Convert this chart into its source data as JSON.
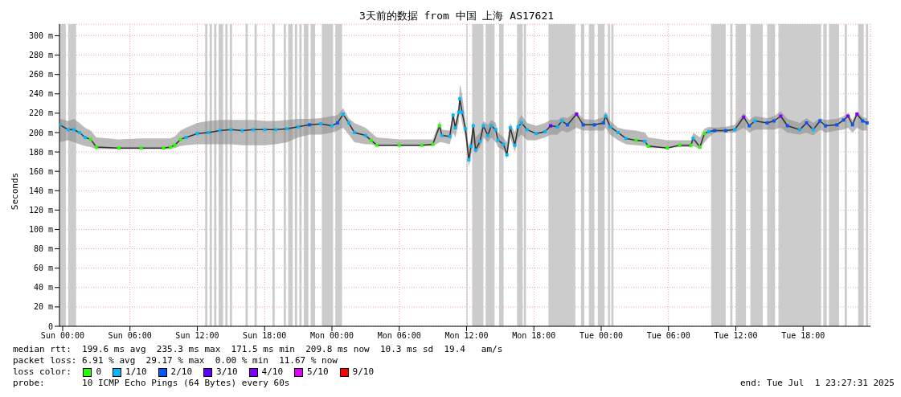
{
  "chart_data": {
    "type": "line",
    "title": "3天前的数据 from 中国 上海 AS17621",
    "ylabel": "Seconds",
    "legend_title": "loss color:",
    "legend": "bottom",
    "grid": true,
    "xlim": [
      "2025-06-28T23:43",
      "2025-07-02T00:00"
    ],
    "xticks": [
      {
        "value": "2025-06-29T00:00",
        "label": "Sun 00:00"
      },
      {
        "value": "2025-06-29T06:00",
        "label": "Sun 06:00"
      },
      {
        "value": "2025-06-29T12:00",
        "label": "Sun 12:00"
      },
      {
        "value": "2025-06-29T18:00",
        "label": "Sun 18:00"
      },
      {
        "value": "2025-06-30T00:00",
        "label": "Mon 00:00"
      },
      {
        "value": "2025-06-30T06:00",
        "label": "Mon 06:00"
      },
      {
        "value": "2025-06-30T12:00",
        "label": "Mon 12:00"
      },
      {
        "value": "2025-06-30T18:00",
        "label": "Mon 18:00"
      },
      {
        "value": "2025-07-01T00:00",
        "label": "Tue 00:00"
      },
      {
        "value": "2025-07-01T06:00",
        "label": "Tue 06:00"
      },
      {
        "value": "2025-07-01T12:00",
        "label": "Tue 12:00"
      },
      {
        "value": "2025-07-01T18:00",
        "label": "Tue 18:00"
      }
    ],
    "ylim": [
      0,
      312
    ],
    "yticks": [
      {
        "value": 0,
        "label": "0"
      },
      {
        "value": 20,
        "label": "20 m"
      },
      {
        "value": 40,
        "label": "40 m"
      },
      {
        "value": 60,
        "label": "60 m"
      },
      {
        "value": 80,
        "label": "80 m"
      },
      {
        "value": 100,
        "label": "100 m"
      },
      {
        "value": 120,
        "label": "120 m"
      },
      {
        "value": 140,
        "label": "140 m"
      },
      {
        "value": 160,
        "label": "160 m"
      },
      {
        "value": 180,
        "label": "180 m"
      },
      {
        "value": 200,
        "label": "200 m"
      },
      {
        "value": 220,
        "label": "220 m"
      },
      {
        "value": 240,
        "label": "240 m"
      },
      {
        "value": 260,
        "label": "260 m"
      },
      {
        "value": 280,
        "label": "280 m"
      },
      {
        "value": 300,
        "label": "300 m"
      }
    ],
    "x": [
      "2025-06-28T23:45",
      "2025-06-29T00:30",
      "2025-06-29T01:00",
      "2025-06-29T01:30",
      "2025-06-29T02:00",
      "2025-06-29T02:30",
      "2025-06-29T03:00",
      "2025-06-29T05:00",
      "2025-06-29T07:00",
      "2025-06-29T09:00",
      "2025-06-29T09:36",
      "2025-06-29T10:00",
      "2025-06-29T10:30",
      "2025-06-29T11:00",
      "2025-06-29T12:00",
      "2025-06-29T13:00",
      "2025-06-29T14:00",
      "2025-06-29T15:00",
      "2025-06-29T16:00",
      "2025-06-29T17:00",
      "2025-06-29T18:00",
      "2025-06-29T19:00",
      "2025-06-29T20:00",
      "2025-06-29T21:00",
      "2025-06-29T22:00",
      "2025-06-29T23:00",
      "2025-06-30T00:00",
      "2025-06-30T00:30",
      "2025-06-30T01:00",
      "2025-06-30T01:30",
      "2025-06-30T02:00",
      "2025-06-30T03:00",
      "2025-06-30T03:30",
      "2025-06-30T04:00",
      "2025-06-30T06:00",
      "2025-06-30T08:00",
      "2025-06-30T09:00",
      "2025-06-30T09:36",
      "2025-06-30T09:48",
      "2025-06-30T10:30",
      "2025-06-30T10:48",
      "2025-06-30T11:00",
      "2025-06-30T11:18",
      "2025-06-30T11:24",
      "2025-06-30T11:36",
      "2025-06-30T11:54",
      "2025-06-30T12:12",
      "2025-06-30T12:24",
      "2025-06-30T12:36",
      "2025-06-30T12:48",
      "2025-06-30T13:12",
      "2025-06-30T13:30",
      "2025-06-30T13:54",
      "2025-06-30T14:12",
      "2025-06-30T14:36",
      "2025-06-30T14:48",
      "2025-06-30T15:18",
      "2025-06-30T15:36",
      "2025-06-30T15:54",
      "2025-06-30T16:18",
      "2025-06-30T16:36",
      "2025-06-30T16:54",
      "2025-06-30T17:24",
      "2025-06-30T18:12",
      "2025-06-30T19:00",
      "2025-06-30T19:30",
      "2025-06-30T20:06",
      "2025-06-30T20:30",
      "2025-06-30T21:00",
      "2025-06-30T21:48",
      "2025-06-30T22:24",
      "2025-06-30T23:24",
      "2025-07-01T00:12",
      "2025-07-01T00:24",
      "2025-07-01T00:48",
      "2025-07-01T01:30",
      "2025-07-01T02:12",
      "2025-07-01T03:06",
      "2025-07-01T03:54",
      "2025-07-01T04:12",
      "2025-07-01T05:54",
      "2025-07-01T07:00",
      "2025-07-01T08:00",
      "2025-07-01T08:12",
      "2025-07-01T08:48",
      "2025-07-01T09:12",
      "2025-07-01T09:36",
      "2025-07-01T10:06",
      "2025-07-01T11:06",
      "2025-07-01T11:54",
      "2025-07-01T12:42",
      "2025-07-01T13:12",
      "2025-07-01T13:42",
      "2025-07-01T14:48",
      "2025-07-01T15:24",
      "2025-07-01T16:00",
      "2025-07-01T16:36",
      "2025-07-01T17:42",
      "2025-07-01T18:18",
      "2025-07-01T18:54",
      "2025-07-01T19:30",
      "2025-07-01T20:00",
      "2025-07-01T21:00",
      "2025-07-01T21:36",
      "2025-07-01T22:00",
      "2025-07-01T22:24",
      "2025-07-01T22:48",
      "2025-07-01T23:18",
      "2025-07-01T23:42"
    ],
    "series": [
      {
        "color": "#303030",
        "values": [
          208,
          203,
          203,
          200,
          195,
          193,
          185,
          184,
          184,
          184,
          185,
          187,
          193,
          195,
          199,
          200,
          202,
          203,
          202,
          203,
          203,
          203,
          204,
          206,
          208,
          209,
          207,
          210,
          219,
          210,
          200,
          197,
          192,
          187,
          187,
          187,
          188,
          207,
          197,
          196,
          218,
          205,
          221,
          235,
          221,
          204,
          172,
          186,
          207,
          182,
          191,
          207,
          197,
          207,
          203,
          192,
          188,
          177,
          205,
          187,
          206,
          210,
          203,
          199,
          201,
          207,
          206,
          212,
          208,
          219,
          208,
          208,
          210,
          217,
          206,
          200,
          194,
          192,
          191,
          186,
          184,
          187,
          187,
          194,
          185,
          199,
          201,
          202,
          202,
          203,
          216,
          207,
          212,
          210,
          212,
          217,
          207,
          203,
          210,
          203,
          212,
          207,
          208,
          213,
          217,
          208,
          219,
          212,
          210
        ],
        "lower": [
          190,
          192,
          190,
          188,
          186,
          185,
          183,
          183,
          183,
          183,
          183,
          184,
          186,
          187,
          188,
          188,
          188,
          188,
          187,
          187,
          187,
          188,
          190,
          195,
          198,
          198,
          200,
          202,
          205,
          198,
          190,
          188,
          188,
          186,
          186,
          186,
          186,
          190,
          190,
          188,
          200,
          195,
          210,
          222,
          210,
          195,
          165,
          175,
          190,
          178,
          185,
          195,
          190,
          195,
          190,
          185,
          182,
          173,
          195,
          180,
          195,
          198,
          192,
          192,
          195,
          198,
          198,
          202,
          200,
          205,
          202,
          202,
          202,
          205,
          198,
          192,
          188,
          187,
          186,
          184,
          184,
          185,
          185,
          186,
          183,
          190,
          195,
          200,
          200,
          200,
          205,
          200,
          203,
          203,
          203,
          205,
          200,
          198,
          200,
          197,
          203,
          200,
          202,
          203,
          205,
          200,
          205,
          202,
          202
        ],
        "upper": [
          214,
          212,
          214,
          210,
          205,
          202,
          195,
          193,
          194,
          194,
          194,
          196,
          202,
          205,
          210,
          212,
          213,
          213,
          213,
          213,
          212,
          212,
          213,
          214,
          214,
          215,
          217,
          218,
          225,
          215,
          210,
          205,
          200,
          195,
          193,
          193,
          193,
          212,
          203,
          202,
          222,
          210,
          228,
          250,
          240,
          212,
          185,
          195,
          212,
          195,
          200,
          212,
          208,
          213,
          210,
          200,
          195,
          190,
          210,
          200,
          212,
          218,
          210,
          207,
          210,
          213,
          213,
          216,
          215,
          222,
          214,
          213,
          216,
          222,
          212,
          205,
          203,
          202,
          200,
          195,
          192,
          192,
          192,
          200,
          195,
          204,
          206,
          205,
          206,
          208,
          220,
          213,
          217,
          215,
          217,
          222,
          214,
          210,
          215,
          210,
          215,
          213,
          214,
          217,
          220,
          213,
          222,
          216,
          215
        ]
      },
      {
        "type": "scatter",
        "name": "0",
        "color": "#26ff00",
        "marker": "square",
        "x": [
          "2025-06-29T02:30",
          "2025-06-29T03:00",
          "2025-06-29T05:00",
          "2025-06-29T07:00",
          "2025-06-29T09:00",
          "2025-06-29T09:36",
          "2025-06-29T10:00",
          "2025-06-29T10:30",
          "2025-06-30T03:30",
          "2025-06-30T04:00",
          "2025-06-30T06:00",
          "2025-06-30T08:00",
          "2025-06-30T09:00",
          "2025-06-30T09:36",
          "2025-07-01T03:06",
          "2025-07-01T04:12",
          "2025-07-01T05:54",
          "2025-07-01T07:00",
          "2025-07-01T08:00",
          "2025-07-01T08:48",
          "2025-07-01T09:12"
        ],
        "values": [
          193,
          185,
          184,
          184,
          184,
          185,
          187,
          193,
          192,
          187,
          187,
          187,
          188,
          207,
          192,
          186,
          184,
          187,
          187,
          185,
          199
        ]
      },
      {
        "type": "scatter",
        "name": "1/10",
        "color": "#00b8ff",
        "marker": "square",
        "x": [
          "2025-06-28T23:45",
          "2025-06-29T00:30",
          "2025-06-29T01:00",
          "2025-06-29T01:30",
          "2025-06-29T02:00",
          "2025-06-29T11:00",
          "2025-06-29T12:00",
          "2025-06-29T13:00",
          "2025-06-29T14:00",
          "2025-06-29T15:00",
          "2025-06-29T16:00",
          "2025-06-29T17:00",
          "2025-06-29T18:00",
          "2025-06-29T19:00",
          "2025-06-29T20:00",
          "2025-06-29T21:00",
          "2025-06-29T23:00",
          "2025-06-30T00:00",
          "2025-06-30T01:00",
          "2025-06-30T01:30",
          "2025-06-30T02:00",
          "2025-06-30T03:00",
          "2025-06-30T09:48",
          "2025-06-30T10:30",
          "2025-06-30T10:48",
          "2025-06-30T11:00",
          "2025-06-30T11:18",
          "2025-06-30T11:24",
          "2025-06-30T11:36",
          "2025-06-30T11:54",
          "2025-06-30T12:12",
          "2025-06-30T12:24",
          "2025-06-30T12:36",
          "2025-06-30T12:48",
          "2025-06-30T13:12",
          "2025-06-30T13:30",
          "2025-06-30T13:54",
          "2025-06-30T14:12",
          "2025-06-30T14:36",
          "2025-06-30T14:48",
          "2025-06-30T15:18",
          "2025-06-30T15:36",
          "2025-06-30T15:54",
          "2025-06-30T16:18",
          "2025-06-30T16:36",
          "2025-06-30T16:54",
          "2025-06-30T17:24",
          "2025-06-30T18:12",
          "2025-06-30T19:00",
          "2025-06-30T20:06",
          "2025-06-30T20:30",
          "2025-07-01T00:24",
          "2025-07-01T00:48",
          "2025-07-01T01:30",
          "2025-07-01T02:12",
          "2025-07-01T03:54",
          "2025-07-01T08:12",
          "2025-07-01T09:36",
          "2025-07-01T11:54",
          "2025-07-01T13:42",
          "2025-07-01T17:42",
          "2025-07-01T18:54"
        ],
        "values": [
          208,
          203,
          203,
          200,
          195,
          195,
          199,
          200,
          202,
          203,
          202,
          203,
          203,
          203,
          204,
          206,
          209,
          207,
          219,
          210,
          200,
          197,
          197,
          196,
          218,
          205,
          221,
          235,
          221,
          204,
          172,
          186,
          207,
          182,
          191,
          207,
          197,
          207,
          203,
          192,
          188,
          177,
          205,
          187,
          206,
          210,
          203,
          199,
          201,
          206,
          212,
          217,
          206,
          200,
          194,
          191,
          194,
          201,
          203,
          212,
          203,
          203
        ]
      },
      {
        "type": "scatter",
        "name": "2/10",
        "color": "#0059ff",
        "marker": "square",
        "x": [
          "2025-06-29T22:00",
          "2025-06-30T00:30",
          "2025-06-30T21:00",
          "2025-06-30T22:24",
          "2025-06-30T23:24",
          "2025-07-01T00:12",
          "2025-07-01T10:06",
          "2025-07-01T11:06",
          "2025-07-01T13:12",
          "2025-07-01T14:48",
          "2025-07-01T15:24",
          "2025-07-01T16:36",
          "2025-07-01T18:18",
          "2025-07-01T19:30",
          "2025-07-01T20:00",
          "2025-07-01T21:00",
          "2025-07-01T21:36",
          "2025-07-01T22:24",
          "2025-07-01T23:18",
          "2025-07-01T23:42"
        ],
        "values": [
          208,
          210,
          208,
          208,
          208,
          210,
          202,
          202,
          207,
          210,
          212,
          207,
          210,
          212,
          207,
          208,
          213,
          208,
          212,
          210
        ]
      },
      {
        "type": "scatter",
        "name": "3/10",
        "color": "#5e00ff",
        "marker": "square",
        "x": [
          "2025-06-30T19:30"
        ],
        "values": [
          207
        ]
      },
      {
        "type": "scatter",
        "name": "4/10",
        "color": "#7e00ff",
        "marker": "square",
        "x": [
          "2025-06-30T21:48",
          "2025-07-01T12:42",
          "2025-07-01T16:00",
          "2025-07-01T22:00",
          "2025-07-01T22:48"
        ],
        "values": [
          219,
          216,
          217,
          217,
          219
        ]
      },
      {
        "type": "scatter",
        "name": "5/10",
        "color": "#dd00ff",
        "values": [
          null,
          null,
          null,
          null,
          null,
          null,
          null,
          null,
          null,
          null,
          null,
          null,
          null,
          null,
          null,
          null,
          null,
          null,
          null,
          null,
          null,
          null,
          null,
          null,
          null,
          null,
          null,
          null,
          null,
          null,
          null,
          null,
          null,
          null,
          null,
          null,
          null,
          null,
          null,
          null,
          null,
          null,
          null,
          null,
          null,
          null,
          null,
          null,
          null,
          null,
          null,
          null,
          null,
          null,
          null,
          null,
          null,
          null,
          null,
          null,
          null,
          null,
          null,
          null,
          null,
          null,
          null,
          null,
          null,
          null,
          null,
          null,
          null,
          null,
          null,
          null,
          null,
          null,
          null,
          null,
          null,
          null,
          null,
          null,
          null,
          null,
          null,
          null,
          null,
          null,
          null,
          null,
          null,
          null,
          null,
          null,
          null,
          null,
          null,
          null,
          null,
          null,
          null,
          null,
          null,
          null,
          null,
          null,
          null
        ]
      },
      {
        "type": "scatter",
        "name": "9/10",
        "color": "#ff0000",
        "values": [
          null,
          null,
          null,
          null,
          null,
          null,
          null,
          null,
          null,
          null,
          null,
          null,
          null,
          null,
          null,
          null,
          null,
          null,
          null,
          null,
          null,
          null,
          null,
          null,
          null,
          null,
          null,
          null,
          null,
          null,
          null,
          null,
          null,
          null,
          null,
          null,
          null,
          null,
          null,
          null,
          null,
          null,
          null,
          null,
          null,
          null,
          null,
          null,
          null,
          null,
          null,
          null,
          null,
          null,
          null,
          null,
          null,
          null,
          null,
          null,
          null,
          null,
          null,
          null,
          null,
          null,
          null,
          null,
          null,
          null,
          null,
          null,
          null,
          null,
          null,
          null,
          null,
          null,
          null,
          null,
          null,
          null,
          null,
          null,
          null,
          null,
          null,
          null,
          null,
          null,
          null,
          null,
          null,
          null,
          null,
          null,
          null,
          null,
          null,
          null,
          null,
          null,
          null,
          null,
          null,
          null,
          null,
          null,
          null
        ]
      }
    ],
    "bands": [
      {
        "axis": "x",
        "from": "2025-06-28T23:43",
        "to": "2025-06-29T00:17",
        "color": "#cccccc"
      },
      {
        "axis": "x",
        "from": "2025-06-29T00:30",
        "to": "2025-06-29T01:12",
        "color": "#cccccc"
      },
      {
        "axis": "x",
        "from": "2025-06-29T12:42",
        "to": "2025-06-29T12:54",
        "color": "#cccccc"
      },
      {
        "axis": "x",
        "from": "2025-06-29T13:06",
        "to": "2025-06-29T13:18",
        "color": "#cccccc"
      },
      {
        "axis": "x",
        "from": "2025-06-29T13:30",
        "to": "2025-06-29T13:42",
        "color": "#cccccc"
      },
      {
        "axis": "x",
        "from": "2025-06-29T13:54",
        "to": "2025-06-29T14:18",
        "color": "#cccccc"
      },
      {
        "axis": "x",
        "from": "2025-06-29T14:30",
        "to": "2025-06-29T14:42",
        "color": "#cccccc"
      },
      {
        "axis": "x",
        "from": "2025-06-29T14:54",
        "to": "2025-06-29T15:06",
        "color": "#cccccc"
      },
      {
        "axis": "x",
        "from": "2025-06-29T16:18",
        "to": "2025-06-29T16:30",
        "color": "#cccccc"
      },
      {
        "axis": "x",
        "from": "2025-06-29T17:06",
        "to": "2025-06-29T17:18",
        "color": "#cccccc"
      },
      {
        "axis": "x",
        "from": "2025-06-29T18:42",
        "to": "2025-06-29T18:54",
        "color": "#cccccc"
      },
      {
        "axis": "x",
        "from": "2025-06-29T19:42",
        "to": "2025-06-29T19:54",
        "color": "#cccccc"
      },
      {
        "axis": "x",
        "from": "2025-06-29T20:06",
        "to": "2025-06-29T20:30",
        "color": "#cccccc"
      },
      {
        "axis": "x",
        "from": "2025-06-29T20:42",
        "to": "2025-06-29T20:54",
        "color": "#cccccc"
      },
      {
        "axis": "x",
        "from": "2025-06-29T21:06",
        "to": "2025-06-29T21:18",
        "color": "#cccccc"
      },
      {
        "axis": "x",
        "from": "2025-06-29T21:30",
        "to": "2025-06-29T21:54",
        "color": "#cccccc"
      },
      {
        "axis": "x",
        "from": "2025-06-29T22:06",
        "to": "2025-06-29T22:30",
        "color": "#cccccc"
      },
      {
        "axis": "x",
        "from": "2025-06-29T23:06",
        "to": "2025-06-30T00:06",
        "color": "#cccccc"
      },
      {
        "axis": "x",
        "from": "2025-06-30T00:18",
        "to": "2025-06-30T00:54",
        "color": "#cccccc"
      },
      {
        "axis": "x",
        "from": "2025-06-30T12:00",
        "to": "2025-06-30T12:06",
        "color": "#cccccc"
      },
      {
        "axis": "x",
        "from": "2025-06-30T12:30",
        "to": "2025-06-30T13:30",
        "color": "#cccccc"
      },
      {
        "axis": "x",
        "from": "2025-06-30T13:42",
        "to": "2025-06-30T14:30",
        "color": "#cccccc"
      },
      {
        "axis": "x",
        "from": "2025-06-30T14:54",
        "to": "2025-06-30T15:18",
        "color": "#cccccc"
      },
      {
        "axis": "x",
        "from": "2025-06-30T16:30",
        "to": "2025-06-30T17:00",
        "color": "#cccccc"
      },
      {
        "axis": "x",
        "from": "2025-06-30T17:06",
        "to": "2025-06-30T17:18",
        "color": "#cccccc"
      },
      {
        "axis": "x",
        "from": "2025-06-30T19:18",
        "to": "2025-06-30T21:42",
        "color": "#cccccc"
      },
      {
        "axis": "x",
        "from": "2025-06-30T22:12",
        "to": "2025-06-30T22:30",
        "color": "#cccccc"
      },
      {
        "axis": "x",
        "from": "2025-06-30T22:54",
        "to": "2025-06-30T23:24",
        "color": "#cccccc"
      },
      {
        "axis": "x",
        "from": "2025-06-30T23:42",
        "to": "2025-07-01T00:18",
        "color": "#cccccc"
      },
      {
        "axis": "x",
        "from": "2025-07-01T00:36",
        "to": "2025-07-01T00:48",
        "color": "#cccccc"
      },
      {
        "axis": "x",
        "from": "2025-07-01T00:54",
        "to": "2025-07-01T01:06",
        "color": "#cccccc"
      },
      {
        "axis": "x",
        "from": "2025-07-01T09:48",
        "to": "2025-07-01T11:06",
        "color": "#cccccc"
      },
      {
        "axis": "x",
        "from": "2025-07-01T11:30",
        "to": "2025-07-01T11:42",
        "color": "#cccccc"
      },
      {
        "axis": "x",
        "from": "2025-07-01T12:00",
        "to": "2025-07-01T12:54",
        "color": "#cccccc"
      },
      {
        "axis": "x",
        "from": "2025-07-01T13:18",
        "to": "2025-07-01T14:24",
        "color": "#cccccc"
      },
      {
        "axis": "x",
        "from": "2025-07-01T14:48",
        "to": "2025-07-01T15:30",
        "color": "#cccccc"
      },
      {
        "axis": "x",
        "from": "2025-07-01T15:48",
        "to": "2025-07-01T19:36",
        "color": "#cccccc"
      },
      {
        "axis": "x",
        "from": "2025-07-01T19:48",
        "to": "2025-07-01T20:06",
        "color": "#cccccc"
      },
      {
        "axis": "x",
        "from": "2025-07-01T20:18",
        "to": "2025-07-01T21:12",
        "color": "#cccccc"
      },
      {
        "axis": "x",
        "from": "2025-07-01T21:42",
        "to": "2025-07-01T21:54",
        "color": "#cccccc"
      },
      {
        "axis": "x",
        "from": "2025-07-01T22:54",
        "to": "2025-07-01T23:24",
        "color": "#cccccc"
      },
      {
        "axis": "x",
        "from": "2025-07-01T23:36",
        "to": "2025-07-01T23:48",
        "color": "#cccccc"
      }
    ],
    "annotations": [
      "median rtt:  199.6 ms avg  235.3 ms max  171.5 ms min  209.8 ms now  10.3 ms sd  19.4   am/s",
      "packet loss: 6.91 % avg  29.17 % max  0.00 % min  11.67 % now",
      "probe:       10 ICMP Echo Pings (64 Bytes) every 60s",
      "end: Tue Jul  1 23:27:31 2025"
    ]
  }
}
